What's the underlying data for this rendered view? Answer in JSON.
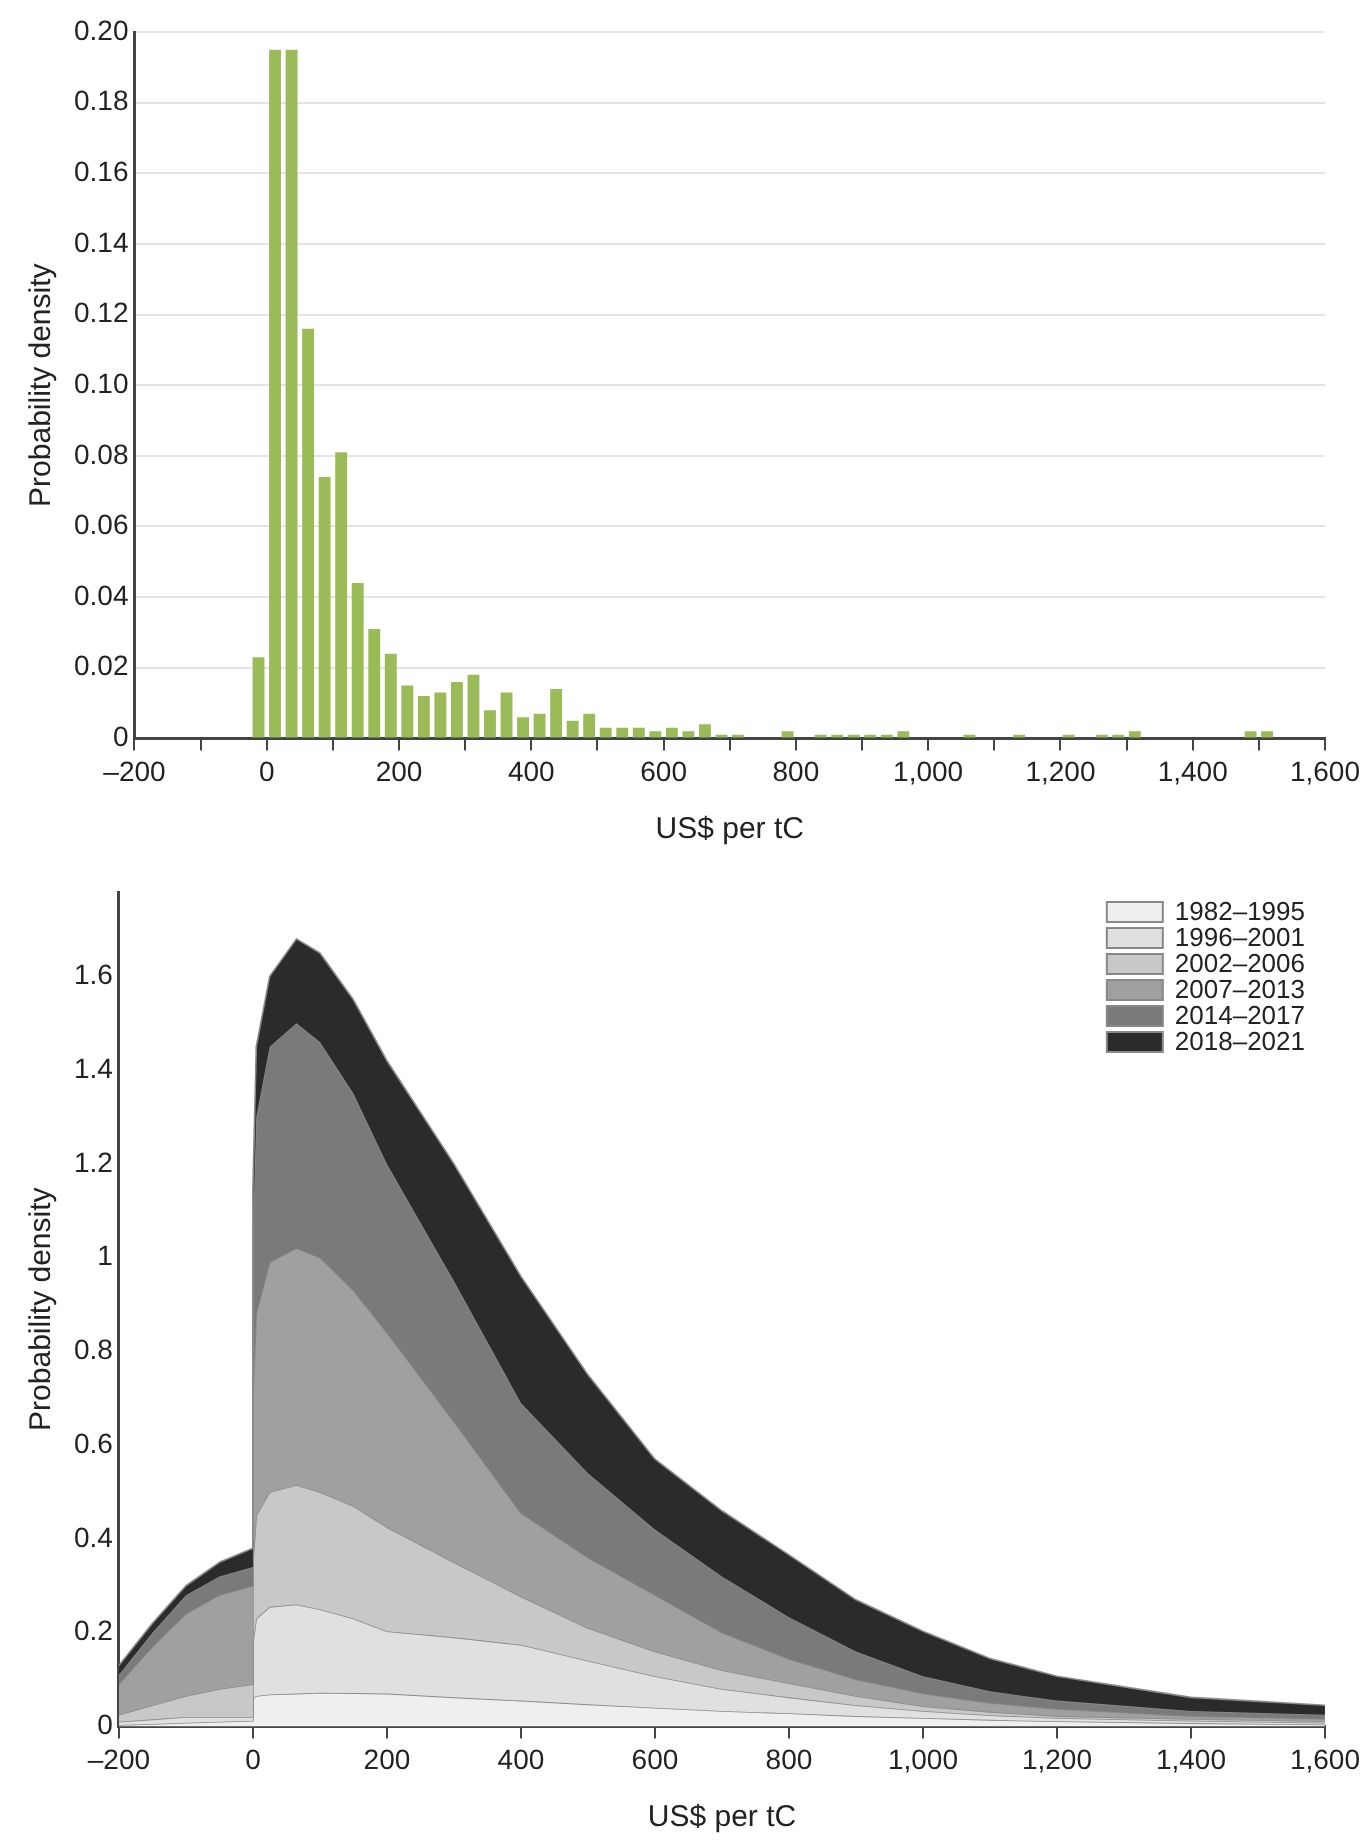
{
  "chart_data": [
    {
      "type": "histogram",
      "xlabel": "US$ per tC",
      "ylabel": "Probability density",
      "color": "#9bbb59",
      "grid": "y",
      "bins": [
        -25,
        0,
        25,
        50,
        75,
        100,
        125,
        150,
        175,
        200,
        225,
        250,
        275,
        300,
        325,
        350,
        375,
        400,
        425,
        450,
        475,
        500,
        525,
        550,
        575,
        600,
        625,
        650,
        675,
        700,
        725,
        750,
        775,
        800,
        825,
        850,
        875,
        900,
        925,
        950,
        975,
        1000,
        1025,
        1050,
        1075,
        1100,
        1125,
        1150,
        1175,
        1200,
        1225,
        1250,
        1275,
        1300,
        1325,
        1350,
        1375,
        1400,
        1425,
        1450,
        1475,
        1500,
        1525
      ],
      "values": [
        0.023,
        0.195,
        0.195,
        0.116,
        0.074,
        0.081,
        0.044,
        0.031,
        0.024,
        0.015,
        0.012,
        0.013,
        0.016,
        0.018,
        0.008,
        0.013,
        0.006,
        0.007,
        0.014,
        0.005,
        0.007,
        0.003,
        0.003,
        0.003,
        0.002,
        0.003,
        0.002,
        0.004,
        0.001,
        0.001,
        0,
        0,
        0.002,
        0,
        0.001,
        0.001,
        0.001,
        0.001,
        0.001,
        0.002,
        0,
        0,
        0,
        0.001,
        0,
        0,
        0.001,
        0,
        0,
        0.001,
        0,
        0.001,
        0.001,
        0.002,
        0,
        0,
        0,
        0,
        0,
        0,
        0.002,
        0.002
      ],
      "xlim": [
        -200,
        1600
      ],
      "xticks": [
        {
          "value": -200,
          "label": "–200"
        },
        {
          "value": -100,
          "label": null
        },
        0,
        {
          "value": 100,
          "label": null
        },
        200,
        {
          "value": 300,
          "label": null
        },
        400,
        {
          "value": 500,
          "label": null
        },
        600,
        {
          "value": 700,
          "label": null
        },
        800,
        {
          "value": 900,
          "label": null
        },
        {
          "value": 1000,
          "label": "1,000"
        },
        {
          "value": 1100,
          "label": null
        },
        {
          "value": 1200,
          "label": "1,200"
        },
        {
          "value": 1300,
          "label": null
        },
        {
          "value": 1400,
          "label": "1,400"
        },
        {
          "value": 1500,
          "label": null
        },
        {
          "value": 1600,
          "label": "1,600"
        }
      ],
      "ylim": [
        0,
        0.2
      ],
      "yticks": [
        0,
        0.02,
        0.04,
        0.06,
        0.08,
        {
          "value": 0.1,
          "label": "0.10"
        },
        0.12,
        0.14,
        0.16,
        0.18,
        {
          "value": 0.2,
          "label": "0.20"
        }
      ]
    },
    {
      "type": "area",
      "stacked": true,
      "xlabel": "US$ per tC",
      "ylabel": "Probability density",
      "legend": "top right",
      "grid": false,
      "x": [
        -200,
        -150,
        -100,
        -50,
        0,
        0,
        5,
        25,
        65,
        100,
        150,
        200,
        300,
        400,
        500,
        600,
        700,
        800,
        900,
        1000,
        1100,
        1200,
        1400,
        1600
      ],
      "series": [
        {
          "name": "1982–1995",
          "color": "#efefef",
          "values": [
            0.003,
            0.005,
            0.008,
            0.01,
            0.012,
            0.06,
            0.065,
            0.068,
            0.07,
            0.072,
            0.071,
            0.07,
            0.062,
            0.055,
            0.047,
            0.04,
            0.033,
            0.028,
            0.022,
            0.018,
            0.014,
            0.011,
            0.007,
            0.004
          ]
        },
        {
          "name": "1996–2001",
          "color": "#e0e0e0",
          "values": [
            0.007,
            0.01,
            0.012,
            0.01,
            0.008,
            0.12,
            0.165,
            0.187,
            0.19,
            0.178,
            0.159,
            0.133,
            0.128,
            0.119,
            0.093,
            0.067,
            0.047,
            0.034,
            0.023,
            0.015,
            0.01,
            0.007,
            0.005,
            0.004
          ]
        },
        {
          "name": "2002–2006",
          "color": "#c8c8c8",
          "values": [
            0.015,
            0.03,
            0.045,
            0.06,
            0.07,
            0.17,
            0.22,
            0.245,
            0.255,
            0.25,
            0.24,
            0.222,
            0.16,
            0.103,
            0.07,
            0.053,
            0.04,
            0.03,
            0.02,
            0.01,
            0.007,
            0.004,
            0.004,
            0.003
          ]
        },
        {
          "name": "2007–2013",
          "color": "#a0a0a0",
          "values": [
            0.065,
            0.125,
            0.175,
            0.2,
            0.21,
            0.35,
            0.43,
            0.49,
            0.505,
            0.5,
            0.46,
            0.415,
            0.3,
            0.178,
            0.15,
            0.12,
            0.08,
            0.052,
            0.035,
            0.027,
            0.019,
            0.015,
            0.006,
            0.005
          ]
        },
        {
          "name": "2014–2017",
          "color": "#7a7a7a",
          "values": [
            0.02,
            0.03,
            0.04,
            0.04,
            0.04,
            0.35,
            0.42,
            0.46,
            0.48,
            0.46,
            0.42,
            0.36,
            0.3,
            0.235,
            0.18,
            0.14,
            0.12,
            0.089,
            0.06,
            0.037,
            0.025,
            0.018,
            0.011,
            0.009
          ]
        },
        {
          "name": "2018–2021",
          "color": "#2b2b2b",
          "values": [
            0.02,
            0.02,
            0.02,
            0.03,
            0.04,
            0.1,
            0.15,
            0.15,
            0.18,
            0.19,
            0.2,
            0.22,
            0.25,
            0.27,
            0.21,
            0.15,
            0.14,
            0.133,
            0.11,
            0.096,
            0.07,
            0.052,
            0.029,
            0.02
          ]
        }
      ],
      "xlim": [
        -200,
        1600
      ],
      "xticks": [
        {
          "value": -200,
          "label": "–200"
        },
        0,
        200,
        400,
        600,
        800,
        {
          "value": 1000,
          "label": "1,000"
        },
        {
          "value": 1200,
          "label": "1,200"
        },
        {
          "value": 1400,
          "label": "1,400"
        },
        {
          "value": 1600,
          "label": "1,600"
        }
      ],
      "ylim": [
        0,
        1.78
      ],
      "yticks": [
        0,
        0.2,
        0.4,
        0.6,
        0.8,
        1,
        1.2,
        1.4,
        1.6
      ]
    }
  ]
}
